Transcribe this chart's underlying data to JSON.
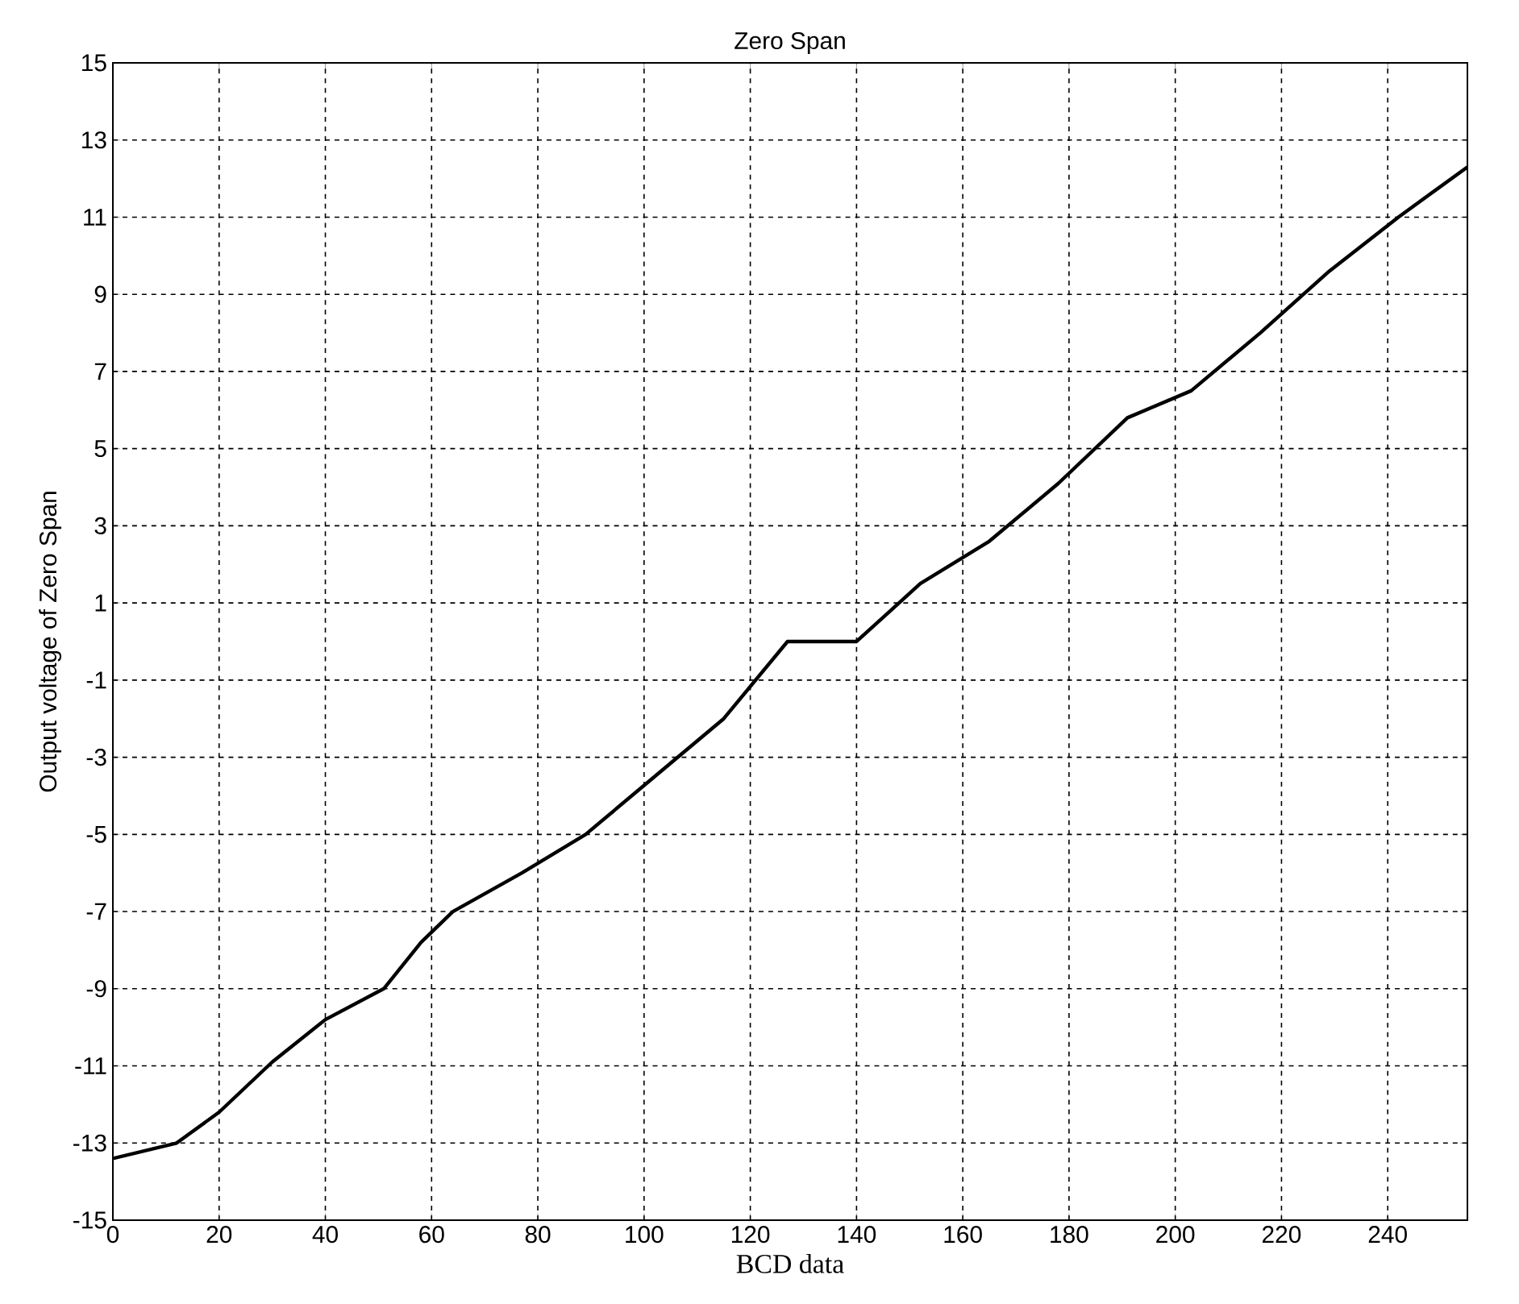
{
  "chart_data": {
    "type": "line",
    "title": "Zero Span",
    "xlabel": "BCD data",
    "ylabel": "Output voltage of Zero Span",
    "x": [
      0,
      12,
      20,
      30,
      40,
      51,
      58,
      64,
      77,
      89,
      102,
      115,
      127,
      140,
      152,
      165,
      178,
      191,
      203,
      216,
      229,
      242,
      255
    ],
    "series": [
      {
        "color": "#000000",
        "values": [
          -13.4,
          -13,
          -12.2,
          -10.9,
          -9.8,
          -9,
          -7.8,
          -7,
          -6,
          -5,
          -3.5,
          -2,
          0,
          0,
          1.5,
          2.6,
          4.1,
          5.8,
          6.5,
          8,
          9.6,
          11,
          12.3
        ]
      }
    ],
    "xlim": [
      0,
      255
    ],
    "ylim": [
      -15,
      15
    ],
    "xticks": [
      0,
      20,
      40,
      60,
      80,
      100,
      120,
      140,
      160,
      180,
      200,
      220,
      240
    ],
    "yticks": [
      -15,
      -13,
      -11,
      -9,
      -7,
      -5,
      -3,
      -1,
      1,
      3,
      5,
      7,
      9,
      11,
      13,
      15
    ],
    "grid": true,
    "marker": "none",
    "line_style": "solid"
  }
}
